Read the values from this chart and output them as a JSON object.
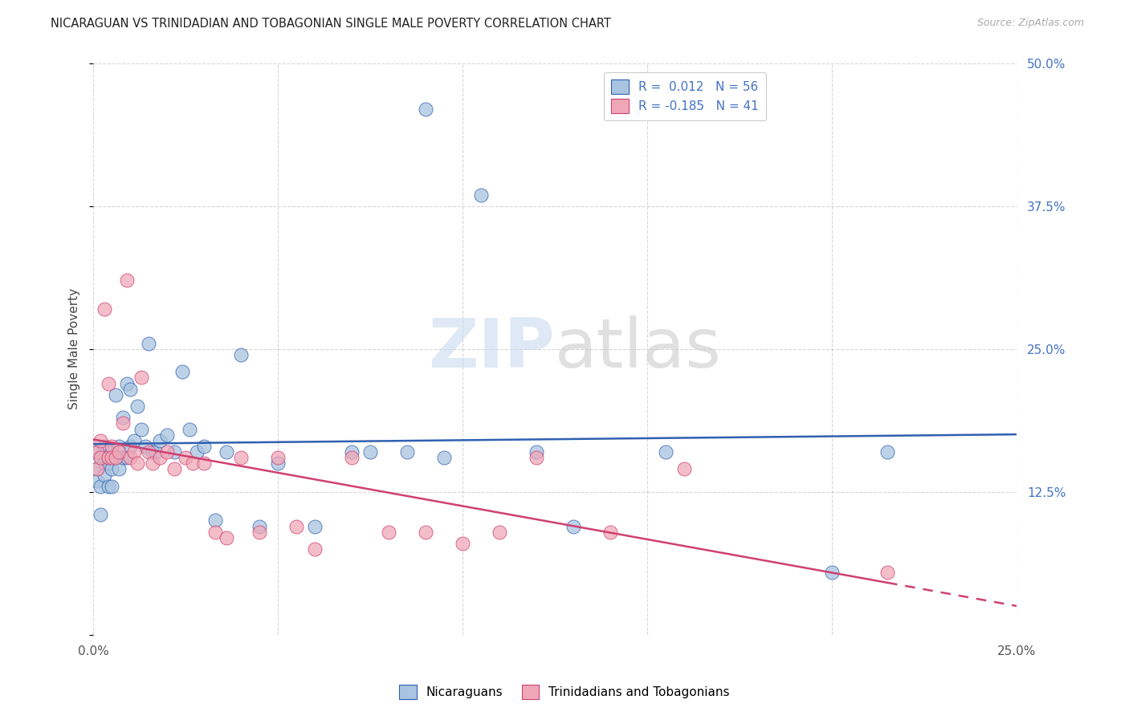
{
  "title": "NICARAGUAN VS TRINIDADIAN AND TOBAGONIAN SINGLE MALE POVERTY CORRELATION CHART",
  "source": "Source: ZipAtlas.com",
  "ylabel": "Single Male Poverty",
  "xlim": [
    0.0,
    0.25
  ],
  "ylim": [
    0.0,
    0.5
  ],
  "nic_color": "#a8c4e0",
  "tt_color": "#f0a8b8",
  "line_nic_color": "#3060b0",
  "line_tt_color": "#d04070",
  "watermark_zip": "ZIP",
  "watermark_atlas": "atlas",
  "legend_labels": [
    "Nicaraguans",
    "Trinidadians and Tobagonians"
  ],
  "background_color": "#ffffff",
  "grid_color": "#bbbbbb",
  "nic_x": [
    0.001,
    0.001,
    0.001,
    0.002,
    0.002,
    0.002,
    0.003,
    0.003,
    0.003,
    0.004,
    0.004,
    0.004,
    0.005,
    0.005,
    0.005,
    0.006,
    0.006,
    0.007,
    0.007,
    0.008,
    0.008,
    0.009,
    0.009,
    0.01,
    0.01,
    0.011,
    0.012,
    0.013,
    0.014,
    0.015,
    0.016,
    0.017,
    0.018,
    0.02,
    0.022,
    0.024,
    0.026,
    0.028,
    0.03,
    0.033,
    0.036,
    0.04,
    0.045,
    0.05,
    0.06,
    0.07,
    0.075,
    0.085,
    0.09,
    0.095,
    0.105,
    0.12,
    0.13,
    0.155,
    0.2,
    0.215
  ],
  "nic_y": [
    0.16,
    0.145,
    0.135,
    0.155,
    0.13,
    0.105,
    0.165,
    0.15,
    0.14,
    0.15,
    0.13,
    0.155,
    0.16,
    0.145,
    0.13,
    0.155,
    0.21,
    0.145,
    0.165,
    0.155,
    0.19,
    0.22,
    0.155,
    0.165,
    0.215,
    0.17,
    0.2,
    0.18,
    0.165,
    0.255,
    0.16,
    0.16,
    0.17,
    0.175,
    0.16,
    0.23,
    0.18,
    0.16,
    0.165,
    0.1,
    0.16,
    0.245,
    0.095,
    0.15,
    0.095,
    0.16,
    0.16,
    0.16,
    0.46,
    0.155,
    0.385,
    0.16,
    0.095,
    0.16,
    0.055,
    0.16
  ],
  "tt_x": [
    0.001,
    0.001,
    0.002,
    0.002,
    0.003,
    0.004,
    0.004,
    0.005,
    0.005,
    0.006,
    0.007,
    0.008,
    0.009,
    0.01,
    0.011,
    0.012,
    0.013,
    0.015,
    0.016,
    0.018,
    0.02,
    0.022,
    0.025,
    0.027,
    0.03,
    0.033,
    0.036,
    0.04,
    0.045,
    0.05,
    0.055,
    0.06,
    0.07,
    0.08,
    0.09,
    0.1,
    0.11,
    0.12,
    0.14,
    0.16,
    0.215
  ],
  "tt_y": [
    0.16,
    0.145,
    0.155,
    0.17,
    0.285,
    0.155,
    0.22,
    0.165,
    0.155,
    0.155,
    0.16,
    0.185,
    0.31,
    0.155,
    0.16,
    0.15,
    0.225,
    0.16,
    0.15,
    0.155,
    0.16,
    0.145,
    0.155,
    0.15,
    0.15,
    0.09,
    0.085,
    0.155,
    0.09,
    0.155,
    0.095,
    0.075,
    0.155,
    0.09,
    0.09,
    0.08,
    0.09,
    0.155,
    0.09,
    0.145,
    0.055
  ]
}
